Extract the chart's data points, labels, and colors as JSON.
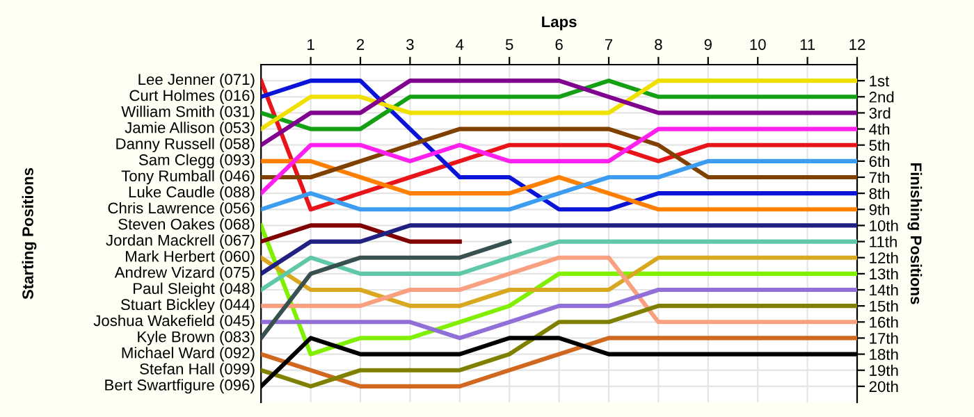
{
  "chart_data": {
    "type": "line",
    "xlabel": "Laps",
    "ylabel": "Finishing Positions",
    "annotations": [
      "Starting Positions"
    ],
    "x": [
      0,
      1,
      2,
      3,
      4,
      5,
      6,
      7,
      8,
      9,
      10,
      11,
      12
    ],
    "xlim": [
      0,
      12
    ],
    "xticks": [
      1,
      2,
      3,
      4,
      5,
      6,
      7,
      8,
      9,
      10,
      11,
      12
    ],
    "ylim": [
      21,
      0
    ],
    "yticks": [
      {
        "value": 1,
        "label": "1st"
      },
      {
        "value": 2,
        "label": "2nd"
      },
      {
        "value": 3,
        "label": "3rd"
      },
      {
        "value": 4,
        "label": "4th"
      },
      {
        "value": 5,
        "label": "5th"
      },
      {
        "value": 6,
        "label": "6th"
      },
      {
        "value": 7,
        "label": "7th"
      },
      {
        "value": 8,
        "label": "8th"
      },
      {
        "value": 9,
        "label": "9th"
      },
      {
        "value": 10,
        "label": "10th"
      },
      {
        "value": 11,
        "label": "11th"
      },
      {
        "value": 12,
        "label": "12th"
      },
      {
        "value": 13,
        "label": "13th"
      },
      {
        "value": 14,
        "label": "14th"
      },
      {
        "value": 15,
        "label": "15th"
      },
      {
        "value": 16,
        "label": "16th"
      },
      {
        "value": 17,
        "label": "17th"
      },
      {
        "value": 18,
        "label": "18th"
      },
      {
        "value": 19,
        "label": "19th"
      },
      {
        "value": 20,
        "label": "20th"
      }
    ],
    "grid": true,
    "legend": false,
    "marker": "none",
    "line_style": "solid",
    "series": [
      {
        "name": "Lee Jenner (071)",
        "color": "#e8141a",
        "values": [
          1,
          9,
          8,
          7,
          6,
          5,
          5,
          5,
          6,
          5,
          5,
          5,
          5
        ]
      },
      {
        "name": "Curt Holmes (016)",
        "color": "#0a14d8",
        "values": [
          2,
          1,
          1,
          4,
          7,
          7,
          9,
          9,
          8,
          8,
          8,
          8,
          8
        ]
      },
      {
        "name": "William Smith (031)",
        "color": "#14a014",
        "values": [
          3,
          4,
          4,
          2,
          2,
          2,
          2,
          1,
          2,
          2,
          2,
          2,
          2
        ]
      },
      {
        "name": "Jamie Allison (053)",
        "color": "#f0e000",
        "values": [
          4,
          2,
          2,
          3,
          3,
          3,
          3,
          3,
          1,
          1,
          1,
          1,
          1
        ]
      },
      {
        "name": "Danny Russell (058)",
        "color": "#800090",
        "values": [
          5,
          3,
          3,
          1,
          1,
          1,
          1,
          2,
          3,
          3,
          3,
          3,
          3
        ]
      },
      {
        "name": "Sam Clegg (093)",
        "color": "#ff8000",
        "values": [
          6,
          6,
          7,
          8,
          8,
          8,
          7,
          8,
          9,
          9,
          9,
          9,
          9
        ]
      },
      {
        "name": "Tony Rumball (046)",
        "color": "#804000",
        "values": [
          7,
          7,
          6,
          5,
          4,
          4,
          4,
          4,
          5,
          7,
          7,
          7,
          7
        ]
      },
      {
        "name": "Luke Caudle (088)",
        "color": "#ff20f0",
        "values": [
          8,
          5,
          5,
          6,
          5,
          6,
          6,
          6,
          4,
          4,
          4,
          4,
          4
        ]
      },
      {
        "name": "Chris Lawrence (056)",
        "color": "#3c9cf0",
        "values": [
          9,
          8,
          9,
          9,
          9,
          9,
          8,
          7,
          7,
          6,
          6,
          6,
          6
        ]
      },
      {
        "name": "Steven Oakes (068)",
        "color": "#80f000",
        "values": [
          10,
          18,
          17,
          17,
          16,
          15,
          13,
          13,
          13,
          13,
          13,
          13,
          13
        ]
      },
      {
        "name": "Jordan Mackrell (067)",
        "color": "#800000",
        "values": [
          11,
          10,
          10,
          11,
          11,
          null,
          null,
          null,
          null,
          null,
          null,
          null,
          null
        ]
      },
      {
        "name": "Mark Herbert (060)",
        "color": "#d8a820",
        "values": [
          12,
          14,
          14,
          15,
          15,
          14,
          14,
          14,
          12,
          12,
          12,
          12,
          12
        ]
      },
      {
        "name": "Andrew Vizard (075)",
        "color": "#202080",
        "values": [
          13,
          11,
          11,
          10,
          10,
          10,
          10,
          10,
          10,
          10,
          10,
          10,
          10
        ]
      },
      {
        "name": "Paul Sleight (048)",
        "color": "#60c8a8",
        "values": [
          14,
          12,
          13,
          13,
          13,
          12,
          11,
          11,
          11,
          11,
          11,
          11,
          11
        ]
      },
      {
        "name": "Stuart Bickley (044)",
        "color": "#f8a080",
        "values": [
          15,
          15,
          15,
          14,
          14,
          13,
          12,
          12,
          16,
          16,
          16,
          16,
          16
        ]
      },
      {
        "name": "Joshua Wakefield (045)",
        "color": "#9070d8",
        "values": [
          16,
          16,
          16,
          16,
          17,
          16,
          15,
          15,
          14,
          14,
          14,
          14,
          14
        ]
      },
      {
        "name": "Kyle Brown (083)",
        "color": "#385050",
        "values": [
          17,
          13,
          12,
          12,
          12,
          11,
          null,
          null,
          null,
          null,
          null,
          null,
          null
        ]
      },
      {
        "name": "Michael Ward (092)",
        "color": "#d06820",
        "values": [
          18,
          19,
          20,
          20,
          20,
          19,
          18,
          17,
          17,
          17,
          17,
          17,
          17
        ]
      },
      {
        "name": "Stefan Hall (099)",
        "color": "#808000",
        "values": [
          19,
          20,
          19,
          19,
          19,
          18,
          16,
          16,
          15,
          15,
          15,
          15,
          15
        ]
      },
      {
        "name": "Bert Swartfigure (096)",
        "color": "#000000",
        "values": [
          20,
          17,
          18,
          18,
          18,
          17,
          17,
          18,
          18,
          18,
          18,
          18,
          18
        ]
      }
    ]
  }
}
